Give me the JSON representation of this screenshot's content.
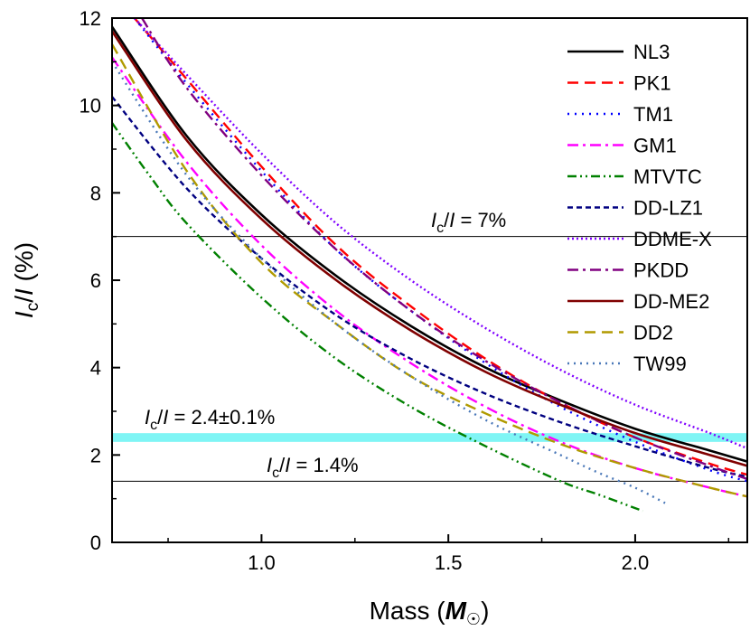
{
  "chart_data": {
    "type": "line",
    "xlabel": "Mass (M☉)",
    "ylabel": "Ic/I (%)",
    "xlim": [
      0.6,
      2.3
    ],
    "ylim": [
      0,
      12
    ],
    "x_ticks": [
      "1.0",
      "1.5",
      "2.0"
    ],
    "y_ticks": [
      "0",
      "2",
      "4",
      "6",
      "8",
      "10",
      "12"
    ],
    "grid": false,
    "legend_position": "top-right",
    "hlines": [
      {
        "y": 7.0,
        "label_prefix": "I",
        "label_sub": "c",
        "label_mid": "/",
        "label_i": "I",
        "label_value": " = 7%"
      },
      {
        "y": 1.4,
        "label_prefix": "I",
        "label_sub": "c",
        "label_mid": "/",
        "label_i": "I",
        "label_value": " = 1.4%"
      }
    ],
    "band": {
      "y_center": 2.4,
      "y_halfwidth": 0.1,
      "color": "#7FF5F5",
      "label_prefix": "I",
      "label_sub": "c",
      "label_mid": "/",
      "label_i": "I",
      "label_value": " = 2.4±0.1%"
    },
    "series": [
      {
        "name": "NL3",
        "color": "#000000",
        "dash": "",
        "width": 2.6,
        "x": [
          0.6,
          0.8,
          1.0,
          1.2,
          1.4,
          1.6,
          1.8,
          2.0,
          2.2,
          2.3
        ],
        "y": [
          11.8,
          9.3,
          7.5,
          6.1,
          4.95,
          4.0,
          3.25,
          2.6,
          2.1,
          1.85
        ]
      },
      {
        "name": "PK1",
        "color": "#FF0000",
        "dash": "12,7",
        "width": 2.4,
        "x": [
          0.66,
          0.8,
          1.0,
          1.2,
          1.4,
          1.6,
          1.8,
          2.0,
          2.2,
          2.3
        ],
        "y": [
          12.0,
          10.6,
          8.6,
          6.8,
          5.4,
          4.2,
          3.2,
          2.4,
          1.8,
          1.55
        ]
      },
      {
        "name": "TM1",
        "color": "#0000FF",
        "dash": "2,6",
        "width": 2.4,
        "x": [
          0.66,
          0.8,
          1.0,
          1.2,
          1.4,
          1.6,
          1.8,
          2.0,
          2.2,
          2.3
        ],
        "y": [
          12.0,
          10.5,
          8.5,
          6.7,
          5.3,
          4.1,
          3.1,
          2.3,
          1.65,
          1.4
        ]
      },
      {
        "name": "GM1",
        "color": "#FF00FF",
        "dash": "12,5,3,5",
        "width": 2.4,
        "x": [
          0.6,
          0.8,
          1.0,
          1.2,
          1.4,
          1.6,
          1.8,
          2.0,
          2.2,
          2.3
        ],
        "y": [
          11.1,
          8.7,
          6.8,
          5.3,
          4.1,
          3.1,
          2.3,
          1.7,
          1.25,
          1.05
        ]
      },
      {
        "name": "MTVTC",
        "color": "#008000",
        "dash": "10,4,2,4,2,4",
        "width": 2.4,
        "x": [
          0.6,
          0.7,
          0.8,
          1.0,
          1.2,
          1.4,
          1.6,
          1.8,
          1.9,
          2.02
        ],
        "y": [
          9.6,
          8.4,
          7.3,
          5.6,
          4.2,
          3.1,
          2.2,
          1.4,
          1.1,
          0.72
        ]
      },
      {
        "name": "DD-LZ1",
        "color": "#000080",
        "dash": "6,4",
        "width": 2.4,
        "x": [
          0.6,
          0.8,
          1.0,
          1.2,
          1.4,
          1.6,
          1.8,
          2.0,
          2.2,
          2.3
        ],
        "y": [
          10.2,
          8.1,
          6.5,
          5.2,
          4.2,
          3.4,
          2.75,
          2.2,
          1.7,
          1.5
        ]
      },
      {
        "name": "DDME-X",
        "color": "#8000FF",
        "dash": "2,3",
        "width": 2.4,
        "x": [
          0.66,
          0.8,
          1.0,
          1.2,
          1.4,
          1.6,
          1.8,
          2.0,
          2.2,
          2.3
        ],
        "y": [
          12.0,
          10.7,
          8.9,
          7.3,
          6.0,
          4.9,
          3.95,
          3.15,
          2.5,
          2.15
        ]
      },
      {
        "name": "PKDD",
        "color": "#800080",
        "dash": "12,5,3,5",
        "width": 2.4,
        "x": [
          0.68,
          0.8,
          1.0,
          1.2,
          1.4,
          1.6,
          1.8,
          2.0,
          2.2,
          2.3
        ],
        "y": [
          12.0,
          10.4,
          8.4,
          6.7,
          5.3,
          4.15,
          3.2,
          2.4,
          1.75,
          1.45
        ]
      },
      {
        "name": "DD-ME2",
        "color": "#800000",
        "dash": "",
        "width": 2.6,
        "x": [
          0.6,
          0.8,
          1.0,
          1.2,
          1.4,
          1.6,
          1.8,
          2.0,
          2.2,
          2.3
        ],
        "y": [
          11.7,
          9.2,
          7.4,
          6.0,
          4.85,
          3.9,
          3.15,
          2.5,
          2.0,
          1.75
        ]
      },
      {
        "name": "DD2",
        "color": "#B09A00",
        "dash": "12,7",
        "width": 2.4,
        "x": [
          0.6,
          0.8,
          1.0,
          1.2,
          1.4,
          1.6,
          1.8,
          2.0,
          2.2,
          2.3
        ],
        "y": [
          11.4,
          8.5,
          6.4,
          5.0,
          3.8,
          2.95,
          2.25,
          1.7,
          1.25,
          1.05
        ]
      },
      {
        "name": "TW99",
        "color": "#4A78B8",
        "dash": "2,5",
        "width": 2.4,
        "x": [
          0.6,
          0.8,
          1.0,
          1.2,
          1.4,
          1.6,
          1.8,
          1.9,
          2.0,
          2.08
        ],
        "y": [
          11.0,
          8.4,
          6.5,
          5.0,
          3.8,
          2.8,
          2.0,
          1.6,
          1.25,
          0.9
        ]
      }
    ]
  }
}
